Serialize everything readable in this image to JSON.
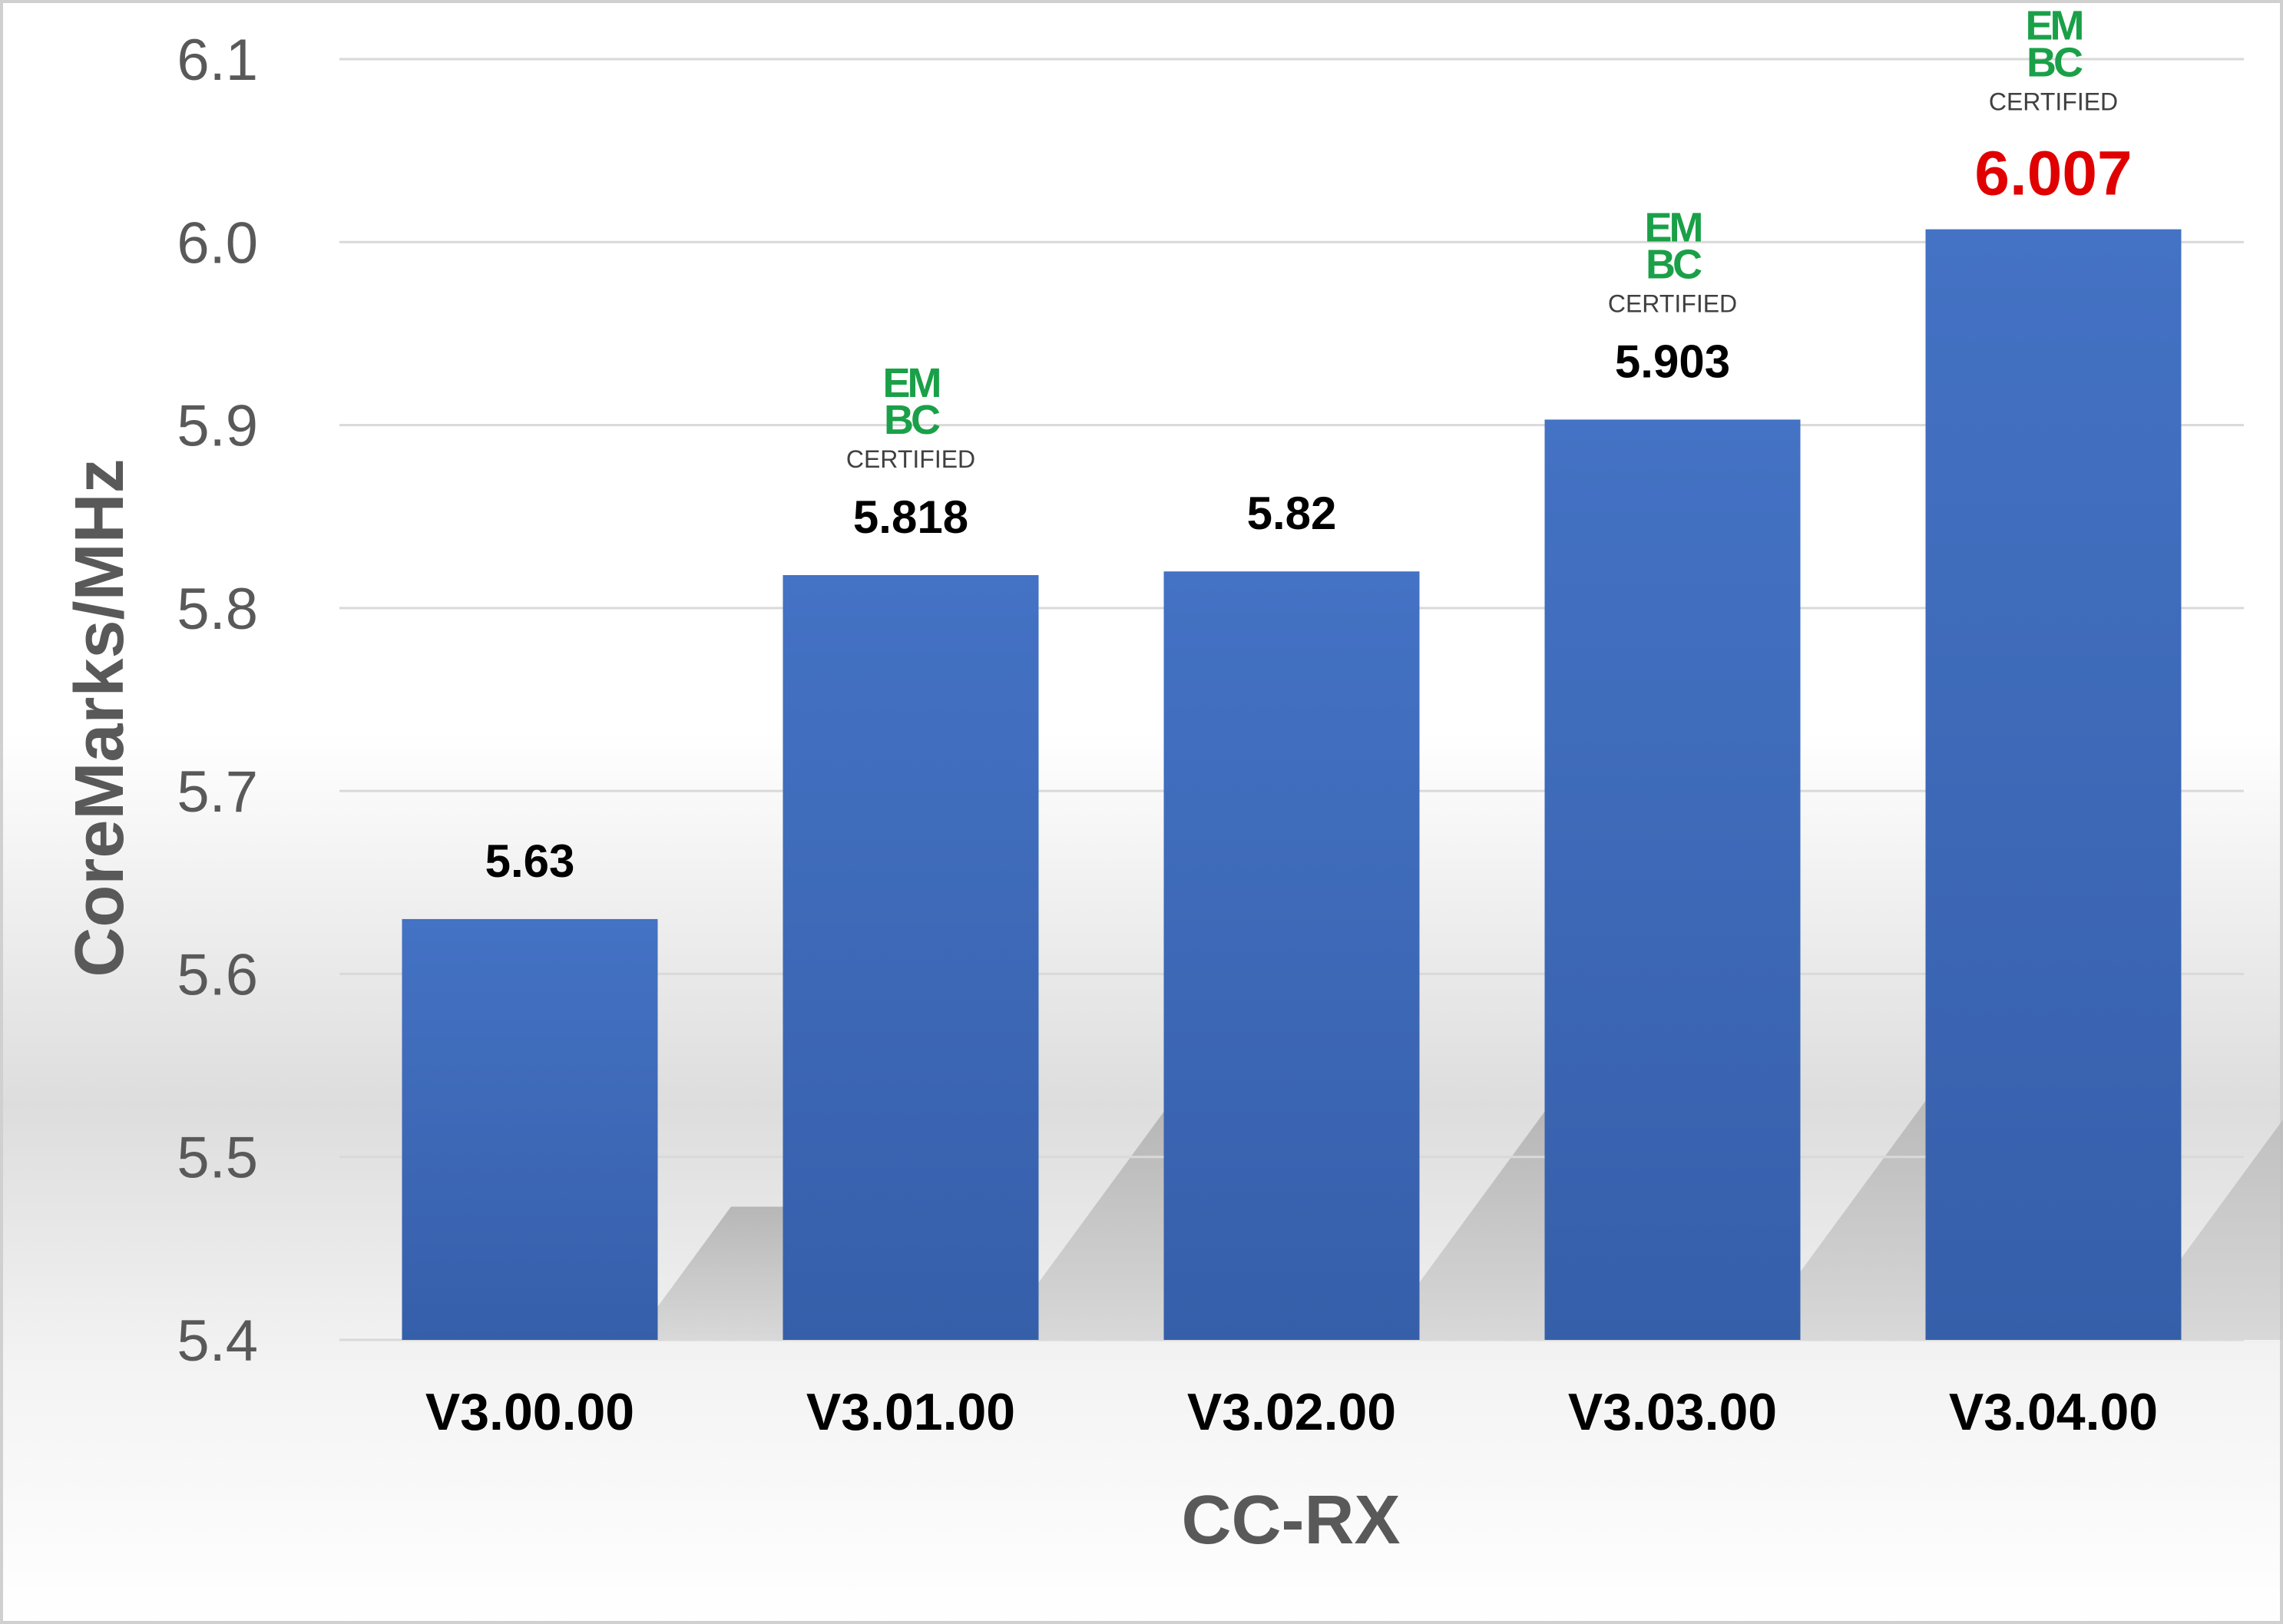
{
  "chart_data": {
    "type": "bar",
    "categories": [
      "V3.00.00",
      "V3.01.00",
      "V3.02.00",
      "V3.03.00",
      "V3.04.00"
    ],
    "values": [
      5.63,
      5.818,
      5.82,
      5.903,
      6.007
    ],
    "data_labels": [
      "5.63",
      "5.818",
      "5.82",
      "5.903",
      "6.007"
    ],
    "xlabel": "CC-RX",
    "ylabel": "CoreMarks/MHz",
    "ylim": [
      5.4,
      6.1
    ],
    "yticks": [
      5.4,
      5.5,
      5.6,
      5.7,
      5.8,
      5.9,
      6.0,
      6.1
    ],
    "ytick_labels": [
      "5.4",
      "5.5",
      "5.6",
      "5.7",
      "5.8",
      "5.9",
      "6.0",
      "6.1"
    ],
    "grid": true,
    "legend": "none",
    "highlight_index": 4,
    "badge": {
      "categories_with_badge": [
        "V3.01.00",
        "V3.03.00",
        "V3.04.00"
      ],
      "line1": "EM",
      "line2": "BC",
      "caption": "CERTIFIED"
    },
    "colors": {
      "bar_top": "#4472C4",
      "bar_bottom": "#365FAA",
      "highlight_label": "#E00000",
      "data_label": "#000000",
      "badge": "#1AA048",
      "badge_caption": "#404040",
      "axis_text": "#595959",
      "gridline": "#D9D9D9"
    }
  }
}
